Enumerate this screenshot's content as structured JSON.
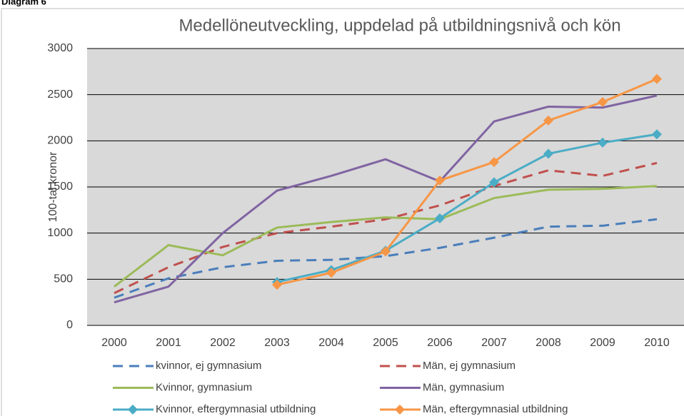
{
  "heading": "Diagram 6",
  "chart_data": {
    "type": "line",
    "title": "Medellöneutveckling, uppdelad på utbildningsnivå och kön",
    "y_label": "100-tal kronor",
    "categories": [
      "2000",
      "2001",
      "2002",
      "2003",
      "2004",
      "2005",
      "2006",
      "2007",
      "2008",
      "2009",
      "2010"
    ],
    "ylim": [
      0,
      3000
    ],
    "yticks": [
      0,
      500,
      1000,
      1500,
      2000,
      2500,
      3000
    ],
    "grid": true,
    "series": [
      {
        "name": "kvinnor, ej gymnasium",
        "color": "#4a7ebb",
        "style": "dashed",
        "values": [
          300,
          510,
          630,
          700,
          710,
          750,
          840,
          950,
          1070,
          1080,
          1150
        ]
      },
      {
        "name": "Män, ej gymnasium",
        "color": "#c0504d",
        "style": "dashed",
        "values": [
          350,
          630,
          850,
          1000,
          1070,
          1150,
          1300,
          1510,
          1680,
          1620,
          1760
        ]
      },
      {
        "name": "Kvinnor, gymnasium",
        "color": "#9bbb59",
        "style": "solid",
        "values": [
          420,
          870,
          760,
          1060,
          1120,
          1170,
          1150,
          1380,
          1470,
          1480,
          1510
        ]
      },
      {
        "name": "Män, gymnasium",
        "color": "#8064a2",
        "style": "solid",
        "values": [
          250,
          420,
          1000,
          1460,
          1620,
          1800,
          1560,
          2210,
          2370,
          2360,
          2490
        ]
      },
      {
        "name": "Kvinnor, eftergymnasial utbildning",
        "color": "#4bacc6",
        "style": "solid",
        "marker": "diamond",
        "values": [
          null,
          null,
          null,
          470,
          600,
          810,
          1160,
          1550,
          1860,
          1980,
          2070
        ]
      },
      {
        "name": "Män, eftergymnasial utbildning",
        "color": "#f79646",
        "style": "solid",
        "marker": "diamond",
        "values": [
          null,
          null,
          null,
          440,
          570,
          800,
          1570,
          1770,
          2220,
          2420,
          2670
        ]
      }
    ]
  }
}
